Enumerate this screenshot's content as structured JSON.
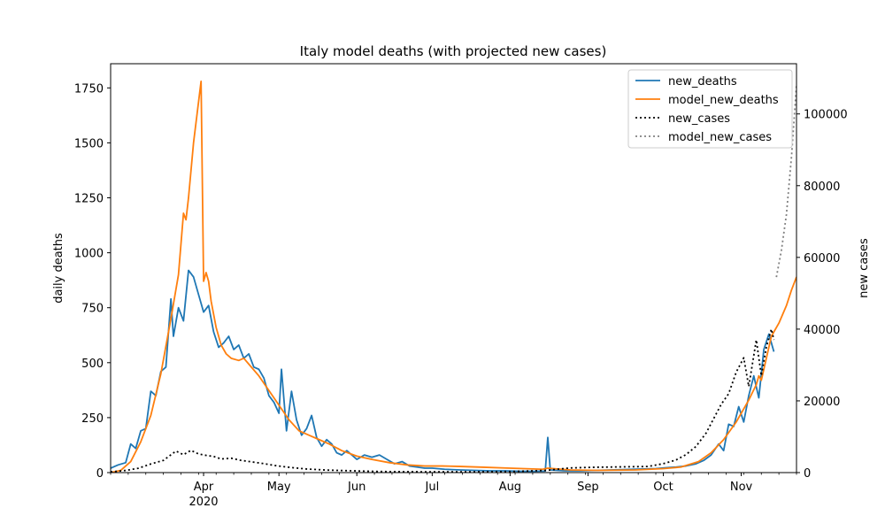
{
  "chart_data": {
    "type": "line",
    "title": "Italy model deaths (with projected new cases)",
    "ylabel_left": "daily deaths",
    "ylabel_right": "new cases",
    "x_tick_labels": [
      "Apr",
      "May",
      "Jun",
      "Jul",
      "Aug",
      "Sep",
      "Oct",
      "Nov"
    ],
    "x_tick_dates": [
      "2020-04-01",
      "2020-05-01",
      "2020-06-01",
      "2020-07-01",
      "2020-08-01",
      "2020-09-01",
      "2020-10-01",
      "2020-11-01"
    ],
    "x_year_label": "2020",
    "xlim": [
      "2020-02-24",
      "2020-11-23"
    ],
    "ylim_left": [
      0,
      1860
    ],
    "y_ticks_left": [
      0,
      250,
      500,
      750,
      1000,
      1250,
      1500,
      1750
    ],
    "ylim_right": [
      0,
      114000
    ],
    "y_ticks_right": [
      0,
      20000,
      40000,
      60000,
      80000,
      100000
    ],
    "grid": false,
    "legend_position": "top-right",
    "colors": {
      "new_deaths": "#1f77b4",
      "model_new_deaths": "#ff7f0e",
      "new_cases": "#000000",
      "model_new_cases": "#808080"
    },
    "series": [
      {
        "name": "new_deaths",
        "axis": "left",
        "style": "solid",
        "points": [
          [
            "2020-02-24",
            20
          ],
          [
            "2020-02-27",
            35
          ],
          [
            "2020-03-01",
            45
          ],
          [
            "2020-03-03",
            130
          ],
          [
            "2020-03-05",
            110
          ],
          [
            "2020-03-07",
            190
          ],
          [
            "2020-03-09",
            200
          ],
          [
            "2020-03-11",
            370
          ],
          [
            "2020-03-13",
            350
          ],
          [
            "2020-03-15",
            460
          ],
          [
            "2020-03-17",
            480
          ],
          [
            "2020-03-19",
            790
          ],
          [
            "2020-03-20",
            620
          ],
          [
            "2020-03-22",
            750
          ],
          [
            "2020-03-24",
            690
          ],
          [
            "2020-03-26",
            920
          ],
          [
            "2020-03-28",
            890
          ],
          [
            "2020-03-30",
            810
          ],
          [
            "2020-04-01",
            730
          ],
          [
            "2020-04-03",
            760
          ],
          [
            "2020-04-05",
            640
          ],
          [
            "2020-04-07",
            570
          ],
          [
            "2020-04-09",
            590
          ],
          [
            "2020-04-11",
            620
          ],
          [
            "2020-04-13",
            560
          ],
          [
            "2020-04-15",
            580
          ],
          [
            "2020-04-17",
            520
          ],
          [
            "2020-04-19",
            540
          ],
          [
            "2020-04-21",
            480
          ],
          [
            "2020-04-23",
            470
          ],
          [
            "2020-04-25",
            430
          ],
          [
            "2020-04-27",
            350
          ],
          [
            "2020-04-29",
            320
          ],
          [
            "2020-05-01",
            270
          ],
          [
            "2020-05-02",
            470
          ],
          [
            "2020-05-04",
            190
          ],
          [
            "2020-05-06",
            370
          ],
          [
            "2020-05-08",
            240
          ],
          [
            "2020-05-10",
            170
          ],
          [
            "2020-05-12",
            200
          ],
          [
            "2020-05-14",
            260
          ],
          [
            "2020-05-16",
            160
          ],
          [
            "2020-05-18",
            120
          ],
          [
            "2020-05-20",
            150
          ],
          [
            "2020-05-22",
            130
          ],
          [
            "2020-05-24",
            90
          ],
          [
            "2020-05-26",
            80
          ],
          [
            "2020-05-28",
            100
          ],
          [
            "2020-05-30",
            80
          ],
          [
            "2020-06-01",
            60
          ],
          [
            "2020-06-04",
            80
          ],
          [
            "2020-06-07",
            70
          ],
          [
            "2020-06-10",
            80
          ],
          [
            "2020-06-13",
            60
          ],
          [
            "2020-06-16",
            40
          ],
          [
            "2020-06-19",
            50
          ],
          [
            "2020-06-22",
            30
          ],
          [
            "2020-06-25",
            25
          ],
          [
            "2020-06-28",
            20
          ],
          [
            "2020-07-01",
            20
          ],
          [
            "2020-07-06",
            15
          ],
          [
            "2020-07-12",
            12
          ],
          [
            "2020-07-18",
            10
          ],
          [
            "2020-07-24",
            8
          ],
          [
            "2020-07-30",
            8
          ],
          [
            "2020-08-05",
            6
          ],
          [
            "2020-08-11",
            6
          ],
          [
            "2020-08-15",
            7
          ],
          [
            "2020-08-16",
            160
          ],
          [
            "2020-08-17",
            12
          ],
          [
            "2020-08-23",
            8
          ],
          [
            "2020-08-29",
            8
          ],
          [
            "2020-09-04",
            10
          ],
          [
            "2020-09-10",
            12
          ],
          [
            "2020-09-16",
            14
          ],
          [
            "2020-09-22",
            16
          ],
          [
            "2020-09-28",
            18
          ],
          [
            "2020-10-02",
            22
          ],
          [
            "2020-10-06",
            25
          ],
          [
            "2020-10-10",
            30
          ],
          [
            "2020-10-14",
            40
          ],
          [
            "2020-10-17",
            55
          ],
          [
            "2020-10-20",
            80
          ],
          [
            "2020-10-23",
            130
          ],
          [
            "2020-10-25",
            100
          ],
          [
            "2020-10-27",
            220
          ],
          [
            "2020-10-29",
            210
          ],
          [
            "2020-10-31",
            300
          ],
          [
            "2020-11-02",
            230
          ],
          [
            "2020-11-04",
            350
          ],
          [
            "2020-11-06",
            440
          ],
          [
            "2020-11-08",
            340
          ],
          [
            "2020-11-10",
            560
          ],
          [
            "2020-11-12",
            630
          ],
          [
            "2020-11-14",
            550
          ]
        ]
      },
      {
        "name": "model_new_deaths",
        "axis": "left",
        "style": "solid",
        "points": [
          [
            "2020-02-24",
            0
          ],
          [
            "2020-02-28",
            10
          ],
          [
            "2020-03-03",
            50
          ],
          [
            "2020-03-07",
            140
          ],
          [
            "2020-03-11",
            260
          ],
          [
            "2020-03-15",
            450
          ],
          [
            "2020-03-19",
            700
          ],
          [
            "2020-03-22",
            900
          ],
          [
            "2020-03-24",
            1180
          ],
          [
            "2020-03-25",
            1150
          ],
          [
            "2020-03-26",
            1250
          ],
          [
            "2020-03-28",
            1500
          ],
          [
            "2020-03-31",
            1780
          ],
          [
            "2020-04-01",
            870
          ],
          [
            "2020-04-02",
            910
          ],
          [
            "2020-04-03",
            870
          ],
          [
            "2020-04-04",
            780
          ],
          [
            "2020-04-06",
            660
          ],
          [
            "2020-04-08",
            580
          ],
          [
            "2020-04-10",
            540
          ],
          [
            "2020-04-12",
            520
          ],
          [
            "2020-04-15",
            510
          ],
          [
            "2020-04-17",
            520
          ],
          [
            "2020-04-20",
            480
          ],
          [
            "2020-04-23",
            440
          ],
          [
            "2020-04-26",
            390
          ],
          [
            "2020-04-29",
            340
          ],
          [
            "2020-05-02",
            290
          ],
          [
            "2020-05-05",
            240
          ],
          [
            "2020-05-09",
            190
          ],
          [
            "2020-05-13",
            170
          ],
          [
            "2020-05-17",
            150
          ],
          [
            "2020-05-21",
            130
          ],
          [
            "2020-05-26",
            100
          ],
          [
            "2020-06-01",
            75
          ],
          [
            "2020-06-07",
            60
          ],
          [
            "2020-06-14",
            45
          ],
          [
            "2020-06-21",
            35
          ],
          [
            "2020-06-28",
            30
          ],
          [
            "2020-07-05",
            30
          ],
          [
            "2020-07-12",
            28
          ],
          [
            "2020-07-20",
            25
          ],
          [
            "2020-08-01",
            20
          ],
          [
            "2020-08-14",
            15
          ],
          [
            "2020-08-16",
            20
          ],
          [
            "2020-08-25",
            12
          ],
          [
            "2020-09-05",
            10
          ],
          [
            "2020-09-20",
            12
          ],
          [
            "2020-10-01",
            18
          ],
          [
            "2020-10-08",
            25
          ],
          [
            "2020-10-15",
            50
          ],
          [
            "2020-10-20",
            90
          ],
          [
            "2020-10-25",
            150
          ],
          [
            "2020-10-30",
            230
          ],
          [
            "2020-11-04",
            330
          ],
          [
            "2020-11-07",
            400
          ],
          [
            "2020-11-08",
            440
          ],
          [
            "2020-11-09",
            420
          ],
          [
            "2020-11-11",
            520
          ],
          [
            "2020-11-13",
            620
          ],
          [
            "2020-11-16",
            680
          ],
          [
            "2020-11-19",
            760
          ],
          [
            "2020-11-21",
            830
          ],
          [
            "2020-11-23",
            890
          ]
        ]
      },
      {
        "name": "new_cases",
        "axis": "right",
        "style": "dotted",
        "points": [
          [
            "2020-02-24",
            200
          ],
          [
            "2020-03-01",
            600
          ],
          [
            "2020-03-06",
            1200
          ],
          [
            "2020-03-11",
            2400
          ],
          [
            "2020-03-16",
            3400
          ],
          [
            "2020-03-21",
            6000
          ],
          [
            "2020-03-24",
            5000
          ],
          [
            "2020-03-27",
            6200
          ],
          [
            "2020-03-30",
            5200
          ],
          [
            "2020-04-02",
            4800
          ],
          [
            "2020-04-05",
            4500
          ],
          [
            "2020-04-08",
            3800
          ],
          [
            "2020-04-12",
            4000
          ],
          [
            "2020-04-16",
            3400
          ],
          [
            "2020-04-20",
            3000
          ],
          [
            "2020-04-25",
            2500
          ],
          [
            "2020-04-30",
            1900
          ],
          [
            "2020-05-06",
            1400
          ],
          [
            "2020-05-12",
            1000
          ],
          [
            "2020-05-20",
            700
          ],
          [
            "2020-05-30",
            500
          ],
          [
            "2020-06-10",
            300
          ],
          [
            "2020-06-20",
            250
          ],
          [
            "2020-07-01",
            200
          ],
          [
            "2020-07-15",
            200
          ],
          [
            "2020-08-01",
            300
          ],
          [
            "2020-08-15",
            600
          ],
          [
            "2020-08-25",
            1300
          ],
          [
            "2020-09-05",
            1500
          ],
          [
            "2020-09-15",
            1600
          ],
          [
            "2020-09-25",
            1700
          ],
          [
            "2020-10-01",
            2500
          ],
          [
            "2020-10-06",
            3500
          ],
          [
            "2020-10-10",
            5000
          ],
          [
            "2020-10-14",
            7300
          ],
          [
            "2020-10-18",
            11000
          ],
          [
            "2020-10-21",
            15000
          ],
          [
            "2020-10-24",
            19000
          ],
          [
            "2020-10-27",
            22000
          ],
          [
            "2020-10-30",
            28000
          ],
          [
            "2020-11-02",
            32000
          ],
          [
            "2020-11-04",
            24000
          ],
          [
            "2020-11-07",
            37000
          ],
          [
            "2020-11-09",
            27000
          ],
          [
            "2020-11-11",
            35000
          ],
          [
            "2020-11-13",
            40000
          ],
          [
            "2020-11-14",
            37000
          ]
        ]
      },
      {
        "name": "model_new_cases",
        "axis": "right",
        "style": "dotted",
        "points": [
          [
            "2020-11-15",
            54500
          ],
          [
            "2020-11-17",
            62000
          ],
          [
            "2020-11-19",
            72000
          ],
          [
            "2020-11-21",
            88000
          ],
          [
            "2020-11-23",
            108000
          ]
        ]
      }
    ]
  }
}
